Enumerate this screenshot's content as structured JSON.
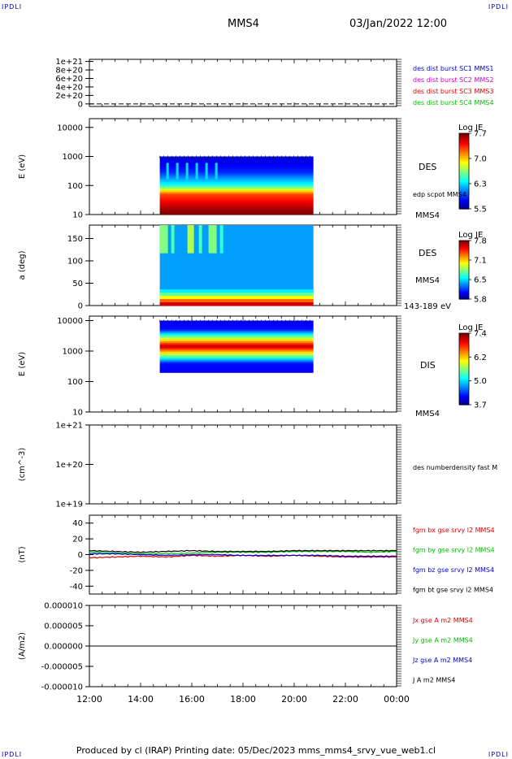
{
  "header": {
    "corner_tl": "IPDLI",
    "corner_tr": "IPDLI",
    "corner_bl": "IPDLI",
    "corner_br": "IPDLI",
    "title": "MMS4",
    "datetime": "03/Jan/2022 12:00"
  },
  "footer": {
    "text": "Produced by cl (IRAP)   Printing date: 05/Dec/2023   mms_mms4_srvy_vue_web1.cl"
  },
  "colors": {
    "red": "#e00000",
    "green": "#00c000",
    "blue": "#0000dd",
    "magenta": "#cc00cc",
    "black": "#000000"
  },
  "chart_data": [
    {
      "type": "line",
      "panel": "burst",
      "ylabel": "",
      "yticks": [
        "1e+21",
        "8e+20",
        "6e+20",
        "4e+20",
        "2e+20",
        "0"
      ],
      "ylim": [
        0,
        1e+21
      ],
      "series_labels": [
        {
          "text": "des dist burst SC1 MMS1",
          "color": "#0000dd"
        },
        {
          "text": "des dist burst SC2 MMS2",
          "color": "#cc00cc"
        },
        {
          "text": "des dist burst SC3 MMS3",
          "color": "#e00000"
        },
        {
          "text": "des dist burst SC4 MMS4",
          "color": "#00c000"
        }
      ],
      "values": "all zero (dashed line at 0)"
    },
    {
      "type": "heatmap",
      "panel": "des_energy",
      "ylabel": "E (eV)",
      "yscale": "log",
      "ylim": [
        10,
        20000
      ],
      "yticks": [
        "10000",
        "1000",
        "100",
        "10"
      ],
      "data_time_range": [
        "14:45",
        "20:45"
      ],
      "energy_range_eV": [
        10,
        1000
      ],
      "instrument_label": "DES",
      "overlay_label": "edp scpot MMS4",
      "spacecraft_label": "MMS4",
      "colorbar": {
        "title": "Log JE",
        "ticks": [
          "7.7",
          "7.0",
          "6.3",
          "5.5"
        ],
        "range": [
          5.5,
          7.7
        ]
      }
    },
    {
      "type": "heatmap",
      "panel": "des_pitch",
      "ylabel": "a (deg)",
      "ylim": [
        0,
        180
      ],
      "yticks": [
        "150",
        "100",
        "50",
        "0"
      ],
      "data_time_range": [
        "14:45",
        "20:45"
      ],
      "instrument_label": "DES",
      "spacecraft_label": "MMS4",
      "energy_band_label": "143-189 eV",
      "colorbar": {
        "title": "Log JE",
        "ticks": [
          "7.8",
          "7.1",
          "6.5",
          "5.8"
        ],
        "range": [
          5.8,
          7.8
        ]
      }
    },
    {
      "type": "heatmap",
      "panel": "dis_energy",
      "ylabel": "E (eV)",
      "yscale": "log",
      "ylim": [
        10,
        14000
      ],
      "yticks": [
        "10000",
        "1000",
        "100",
        "10"
      ],
      "data_time_range": [
        "14:45",
        "20:45"
      ],
      "energy_range_eV": [
        200,
        10000
      ],
      "instrument_label": "DIS",
      "spacecraft_label": "MMS4",
      "colorbar": {
        "title": "Log JE",
        "ticks": [
          "7.4",
          "6.2",
          "5.0",
          "3.7"
        ],
        "range": [
          3.7,
          7.4
        ]
      }
    },
    {
      "type": "line",
      "panel": "density",
      "ylabel": "(cm^-3)",
      "yscale": "log",
      "ylim": [
        1e+19,
        1e+21
      ],
      "yticks": [
        "1e+21",
        "1e+20",
        "1e+19"
      ],
      "series_labels": [
        {
          "text": "des numberdensity fast M",
          "color": "#000000"
        }
      ],
      "values": "none shown"
    },
    {
      "type": "line",
      "panel": "fgm",
      "ylabel": "(nT)",
      "ylim": [
        -50,
        50
      ],
      "yticks": [
        "40",
        "20",
        "0",
        "-20",
        "-40"
      ],
      "series_labels": [
        {
          "text": "fgm bx gse srvy l2 MMS4",
          "color": "#e00000"
        },
        {
          "text": "fgm by gse srvy l2 MMS4",
          "color": "#00c000"
        },
        {
          "text": "fgm bz gse srvy l2 MMS4",
          "color": "#0000dd"
        },
        {
          "text": "fgm bt gse srvy l2 MMS4",
          "color": "#000000"
        }
      ],
      "x_hours": [
        0,
        1,
        2,
        3,
        4,
        5,
        6,
        7,
        8,
        9,
        10,
        11,
        12
      ],
      "series": [
        {
          "name": "bx",
          "color": "#e00000",
          "values": [
            -4,
            -3,
            -2,
            -3,
            -1,
            -2,
            -1,
            -2,
            -1,
            -2,
            -3,
            -3,
            -3
          ]
        },
        {
          "name": "by",
          "color": "#00c000",
          "values": [
            3,
            2,
            1,
            1,
            2,
            3,
            3,
            3,
            4,
            4,
            4,
            3,
            4
          ]
        },
        {
          "name": "bz",
          "color": "#0000dd",
          "values": [
            1,
            1,
            0,
            -1,
            0,
            0,
            -1,
            -1,
            -1,
            -1,
            -2,
            -2,
            -2
          ]
        },
        {
          "name": "bt",
          "color": "#000000",
          "values": [
            5,
            4,
            3,
            4,
            5,
            4,
            4,
            4,
            5,
            5,
            5,
            5,
            5
          ]
        }
      ]
    },
    {
      "type": "line",
      "panel": "current",
      "ylabel": "(A/m2)",
      "ylim": [
        -1e-05,
        1e-05
      ],
      "yticks": [
        "0.000010",
        "0.000005",
        "0.000000",
        "-0.000005",
        "-0.000010"
      ],
      "series_labels": [
        {
          "text": "Jx gse A m2 MMS4",
          "color": "#e00000"
        },
        {
          "text": "Jy gse A m2 MMS4",
          "color": "#00c000"
        },
        {
          "text": "Jz gse A m2 MMS4",
          "color": "#0000dd"
        },
        {
          "text": "J A m2 MMS4",
          "color": "#000000"
        }
      ],
      "values": "approximately 0 throughout"
    }
  ],
  "xaxis": {
    "ticks": [
      "12:00",
      "14:00",
      "16:00",
      "18:00",
      "20:00",
      "22:00",
      "00:00"
    ]
  }
}
